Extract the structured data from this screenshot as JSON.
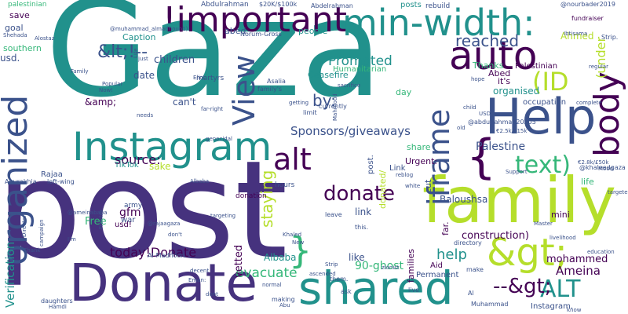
{
  "title": "",
  "palette": {
    "purple": "#440154",
    "indigo": "#3b528b",
    "navy": "#46327e",
    "teal": "#21918c",
    "green": "#35b779",
    "lime": "#b5de2b",
    "yellow": "#fde725",
    "blue": "#31688e"
  },
  "words": [
    {
      "text": "Gaza",
      "color": "teal"
    },
    {
      "text": "post",
      "color": "navy"
    },
    {
      "text": "family",
      "color": "lime"
    },
    {
      "text": "Donate",
      "color": "navy"
    },
    {
      "text": "Help",
      "color": "indigo"
    },
    {
      "text": "Instagram",
      "color": "teal"
    },
    {
      "text": "!important",
      "color": "purple"
    },
    {
      "text": "min-width:",
      "color": "teal"
    },
    {
      "text": "auto",
      "color": "purple"
    },
    {
      "text": "shared",
      "color": "teal"
    },
    {
      "text": "organized",
      "color": "indigo"
    },
    {
      "text": "&gt;",
      "color": "lime"
    },
    {
      "text": "body",
      "color": "purple"
    },
    {
      "text": "iframe",
      "color": "indigo"
    },
    {
      "text": "View",
      "color": "indigo"
    },
    {
      "text": "{",
      "color": "purple"
    },
    {
      "text": "}",
      "color": "green"
    },
    {
      "text": "alt",
      "color": "purple"
    },
    {
      "text": "text)",
      "color": "green"
    },
    {
      "text": "(ID",
      "color": "lime"
    },
    {
      "text": "donate",
      "color": "purple"
    },
    {
      "text": "ALT",
      "color": "teal"
    },
    {
      "text": "--&gt;",
      "color": "purple"
    },
    {
      "text": "&lt;!--",
      "color": "indigo"
    },
    {
      "text": "reached",
      "color": "indigo"
    },
    {
      "text": "today!Donate",
      "color": "purple"
    },
    {
      "text": "help",
      "color": "teal"
    },
    {
      "text": "staying",
      "color": "lime"
    },
    {
      "text": "Promoted",
      "color": "teal"
    },
    {
      "text": "Ameina",
      "color": "purple"
    },
    {
      "text": "Sponsors/giveaways",
      "color": "indigo"
    },
    {
      "text": "source:",
      "color": "purple"
    },
    {
      "text": "Verification",
      "color": "teal"
    },
    {
      "text": "evacuate",
      "color": "green"
    },
    {
      "text": "Palestine",
      "color": "indigo"
    },
    {
      "text": "construction)",
      "color": "purple"
    },
    {
      "text": "mohammed",
      "color": "purple"
    },
    {
      "text": "90-ghost",
      "color": "green"
    },
    {
      "text": "children",
      "color": "indigo"
    },
    {
      "text": "Baloushsa",
      "color": "indigo"
    },
    {
      "text": "(under",
      "color": "lime"
    },
    {
      "text": "by:",
      "color": "indigo"
    },
    {
      "text": "Ahmed",
      "color": "lime"
    },
    {
      "text": "organised",
      "color": "teal"
    },
    {
      "text": "Albaba",
      "color": "teal"
    },
    {
      "text": "vetted",
      "color": "purple"
    },
    {
      "text": "Free",
      "color": "green"
    },
    {
      "text": "gfm",
      "color": "purple"
    },
    {
      "text": "date",
      "color": "indigo"
    },
    {
      "text": "can't",
      "color": "indigo"
    },
    {
      "text": "&amp;",
      "color": "purple"
    },
    {
      "text": "usd.",
      "color": "indigo"
    },
    {
      "text": "southern",
      "color": "green"
    },
    {
      "text": "goal",
      "color": "indigo"
    },
    {
      "text": "save",
      "color": "purple"
    },
    {
      "text": "palestinian",
      "color": "green"
    },
    {
      "text": "Caption",
      "color": "teal"
    },
    {
      "text": "abed",
      "color": "indigo"
    },
    {
      "text": "people",
      "color": "teal"
    },
    {
      "text": "Ceasefire",
      "color": "teal"
    },
    {
      "text": "Humanitarian",
      "color": "green"
    },
    {
      "text": "Thanks",
      "color": "green"
    },
    {
      "text": "Abed",
      "color": "purple"
    },
    {
      "text": "it's",
      "color": "purple"
    },
    {
      "text": "occupation",
      "color": "indigo"
    },
    {
      "text": "Palestinian",
      "color": "purple"
    },
    {
      "text": "TikTok",
      "color": "teal"
    },
    {
      "text": "sake",
      "color": "lime"
    },
    {
      "text": "share",
      "color": "green"
    },
    {
      "text": "Urgent:",
      "color": "purple"
    },
    {
      "text": "link",
      "color": "indigo"
    },
    {
      "text": "like",
      "color": "indigo"
    },
    {
      "text": "mini",
      "color": "purple"
    },
    {
      "text": "life",
      "color": "green"
    },
    {
      "text": "day",
      "color": "green"
    },
    {
      "text": "posts",
      "color": "teal"
    },
    {
      "text": "rebuild",
      "color": "indigo"
    },
    {
      "text": "Permanent",
      "color": "indigo"
    },
    {
      "text": "Aid",
      "color": "purple"
    },
    {
      "text": "cut",
      "color": "indigo"
    },
    {
      "text": "donated/",
      "color": "lime"
    },
    {
      "text": "Link",
      "color": "indigo"
    },
    {
      "text": "post.",
      "color": "indigo"
    },
    {
      "text": "war",
      "color": "indigo"
    },
    {
      "text": "army",
      "color": "indigo"
    },
    {
      "text": "Rajaa",
      "color": "indigo"
    },
    {
      "text": "usd!",
      "color": "purple"
    },
    {
      "text": "Instagram.",
      "color": "indigo"
    },
    {
      "text": "hours",
      "color": "indigo"
    },
    {
      "text": "donation",
      "color": "purple"
    },
    {
      "text": "martyrs",
      "color": "indigo"
    },
    {
      "text": "Abdulrahman",
      "color": "indigo"
    },
    {
      "text": "Abdelrahman",
      "color": "indigo"
    },
    {
      "text": "$20K/$100k",
      "color": "indigo"
    },
    {
      "text": "@nourbader2019",
      "color": "indigo"
    },
    {
      "text": "fundraiser",
      "color": "purple"
    },
    {
      "text": "Strip.",
      "color": "indigo"
    },
    {
      "text": "Norum-Gross",
      "color": "indigo"
    },
    {
      "text": "family's",
      "color": "indigo"
    },
    {
      "text": "Asalia",
      "color": "indigo"
    },
    {
      "text": "limit",
      "color": "indigo"
    },
    {
      "text": "currently",
      "color": "indigo"
    },
    {
      "text": "leave",
      "color": "indigo"
    },
    {
      "text": "this.",
      "color": "indigo"
    },
    {
      "text": "them.",
      "color": "indigo"
    },
    {
      "text": "families",
      "color": "purple"
    },
    {
      "text": "far.",
      "color": "purple"
    },
    {
      "text": "directory",
      "color": "indigo"
    },
    {
      "text": "make",
      "color": "indigo"
    },
    {
      "text": "live",
      "color": "indigo"
    },
    {
      "text": "ask",
      "color": "indigo"
    },
    {
      "text": "making",
      "color": "indigo"
    },
    {
      "text": "daughters",
      "color": "indigo"
    },
    {
      "text": "Thank",
      "color": "indigo"
    },
    {
      "text": "campaign",
      "color": "indigo"
    },
    {
      "text": "Directory",
      "color": "indigo"
    },
    {
      "text": "Shehada",
      "color": "indigo"
    },
    {
      "text": "Alostaz",
      "color": "indigo"
    },
    {
      "text": "Aburakhia",
      "color": "indigo"
    },
    {
      "text": "left-wing",
      "color": "indigo"
    },
    {
      "text": "@abdulrahman20205",
      "color": "indigo"
    },
    {
      "text": "@khaleedgaza",
      "color": "indigo"
    },
    {
      "text": "@ameinababa",
      "color": "indigo"
    },
    {
      "text": "@rajaagaza",
      "color": "indigo"
    },
    {
      "text": "@muhammad_almadhoun1)",
      "color": "indigo"
    },
    {
      "text": "€2.5k/£15k",
      "color": "indigo"
    },
    {
      "text": "€2.8k/£50k",
      "color": "indigo"
    },
    {
      "text": "USD",
      "color": "indigo"
    },
    {
      "text": "Al",
      "color": "indigo"
    },
    {
      "text": "Muhammad",
      "color": "indigo"
    },
    {
      "text": "livelihood",
      "color": "indigo"
    },
    {
      "text": "education",
      "color": "indigo"
    },
    {
      "text": "Master",
      "color": "indigo"
    },
    {
      "text": "Support",
      "color": "indigo"
    },
    {
      "text": "New",
      "color": "indigo"
    },
    {
      "text": "normal",
      "color": "indigo"
    },
    {
      "text": "Eman:",
      "color": "indigo"
    },
    {
      "text": "decent",
      "color": "indigo"
    },
    {
      "text": "Khaled",
      "color": "indigo"
    },
    {
      "text": "Eliot",
      "color": "indigo"
    },
    {
      "text": "needs",
      "color": "indigo"
    },
    {
      "text": "Popular",
      "color": "indigo"
    },
    {
      "text": "Now!",
      "color": "indigo"
    },
    {
      "text": "just",
      "color": "indigo"
    },
    {
      "text": "far-right",
      "color": "indigo"
    },
    {
      "text": "genocidal",
      "color": "indigo"
    },
    {
      "text": "targeting",
      "color": "indigo"
    },
    {
      "text": "Frontm",
      "color": "indigo"
    },
    {
      "text": "I'm",
      "color": "indigo"
    },
    {
      "text": "don't",
      "color": "indigo"
    },
    {
      "text": "Hamdi",
      "color": "indigo"
    },
    {
      "text": "Strip",
      "color": "indigo"
    },
    {
      "text": "Abu",
      "color": "indigo"
    },
    {
      "text": "zionist",
      "color": "indigo"
    },
    {
      "text": "reblog",
      "color": "indigo"
    },
    {
      "text": "white",
      "color": "indigo"
    },
    {
      "text": "Mood",
      "color": "indigo"
    },
    {
      "text": "complete",
      "color": "indigo"
    },
    {
      "text": "hope",
      "color": "indigo"
    },
    {
      "text": "child",
      "color": "indigo"
    },
    {
      "text": "old",
      "color": "indigo"
    },
    {
      "text": "regular",
      "color": "indigo"
    },
    {
      "text": "targeted",
      "color": "indigo"
    },
    {
      "text": "know",
      "color": "indigo"
    },
    {
      "text": "getting",
      "color": "indigo"
    },
    {
      "text": "Albaba",
      "color": "indigo"
    },
    {
      "text": "sacrifice",
      "color": "indigo"
    },
    {
      "text": "Mahmoud",
      "color": "indigo"
    },
    {
      "text": "Ibtisama",
      "color": "indigo"
    },
    {
      "text": "ascended",
      "color": "indigo"
    },
    {
      "text": "Family",
      "color": "indigo"
    },
    {
      "text": "Life",
      "color": "indigo"
    },
    {
      "text": "dont",
      "color": "indigo"
    },
    {
      "text": "Al-Madhoun",
      "color": "indigo"
    }
  ]
}
